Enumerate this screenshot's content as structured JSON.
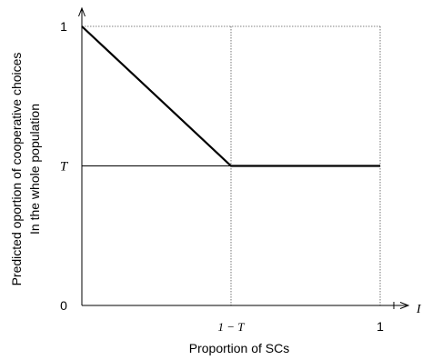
{
  "chart_data": {
    "type": "line",
    "xlabel": "Proportion of SCs",
    "ylabel_line1": "Predicted oportion of cooperative choices",
    "ylabel_line2": "In the whole population",
    "x_axis_end_label": "I",
    "x_ticks": [
      {
        "label": "1 − T",
        "value": 0.5,
        "style": "serif-italic"
      },
      {
        "label": "1",
        "value": 1.0,
        "style": "sans"
      }
    ],
    "y_ticks": [
      {
        "label": "0",
        "value": 0.0,
        "style": "sans"
      },
      {
        "label": "T",
        "value": 0.5,
        "style": "serif-italic"
      },
      {
        "label": "1",
        "value": 1.0,
        "style": "sans"
      }
    ],
    "xlim": [
      0,
      1
    ],
    "ylim": [
      0,
      1
    ],
    "series": [
      {
        "x": [
          0,
          0.5,
          1.0
        ],
        "y": [
          1.0,
          0.5,
          0.5
        ]
      }
    ],
    "reference_lines": [
      {
        "orientation": "horizontal",
        "value": 0.5,
        "style": "solid"
      },
      {
        "orientation": "horizontal",
        "value": 1.0,
        "style": "dotted"
      },
      {
        "orientation": "vertical",
        "value": 0.5,
        "style": "dotted"
      },
      {
        "orientation": "vertical",
        "value": 1.0,
        "style": "dotted"
      }
    ],
    "colors": {
      "line": "#000000",
      "axis": "#000000",
      "reference": "#555555"
    }
  }
}
